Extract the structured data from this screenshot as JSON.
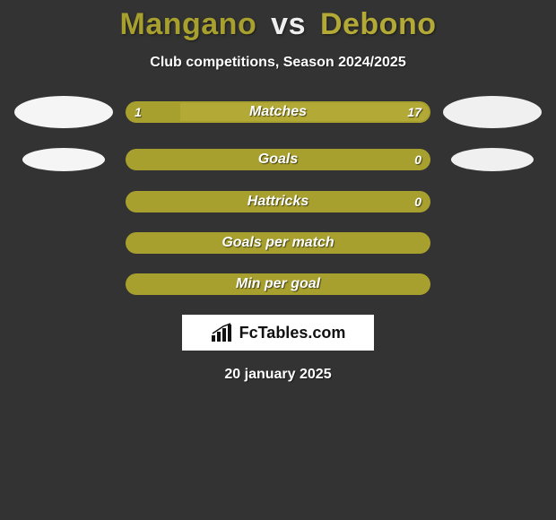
{
  "colors": {
    "background": "#333333",
    "player1": "#a8a02e",
    "player2": "#b3a936",
    "barBorder": "#a8a02e",
    "gridFill": "#a8a02e",
    "logo1": "#f5f5f5",
    "logo2": "#f0f0f0",
    "titleP1": "#a8a02e",
    "titleVs": "#eeeeee",
    "titleP2": "#b3a936"
  },
  "title": {
    "player1": "Mangano",
    "vs": "vs",
    "player2": "Debono"
  },
  "subtitle": "Club competitions, Season 2024/2025",
  "rows": [
    {
      "label": "Matches",
      "leftVal": "1",
      "rightVal": "17",
      "leftPct": 18,
      "rightPct": 82,
      "fullFill": false,
      "showLogos": true,
      "showVals": true
    },
    {
      "label": "Goals",
      "leftVal": "",
      "rightVal": "0",
      "leftPct": 0,
      "rightPct": 0,
      "fullFill": true,
      "showLogos": true,
      "showVals": true,
      "smallLogos": true
    },
    {
      "label": "Hattricks",
      "leftVal": "",
      "rightVal": "0",
      "leftPct": 0,
      "rightPct": 0,
      "fullFill": true,
      "showLogos": false,
      "showVals": true
    },
    {
      "label": "Goals per match",
      "leftVal": "",
      "rightVal": "",
      "leftPct": 0,
      "rightPct": 0,
      "fullFill": true,
      "showLogos": false,
      "showVals": false
    },
    {
      "label": "Min per goal",
      "leftVal": "",
      "rightVal": "",
      "leftPct": 0,
      "rightPct": 0,
      "fullFill": true,
      "showLogos": false,
      "showVals": false
    }
  ],
  "footer": {
    "brand": "FcTables.com",
    "date": "20 january 2025"
  }
}
